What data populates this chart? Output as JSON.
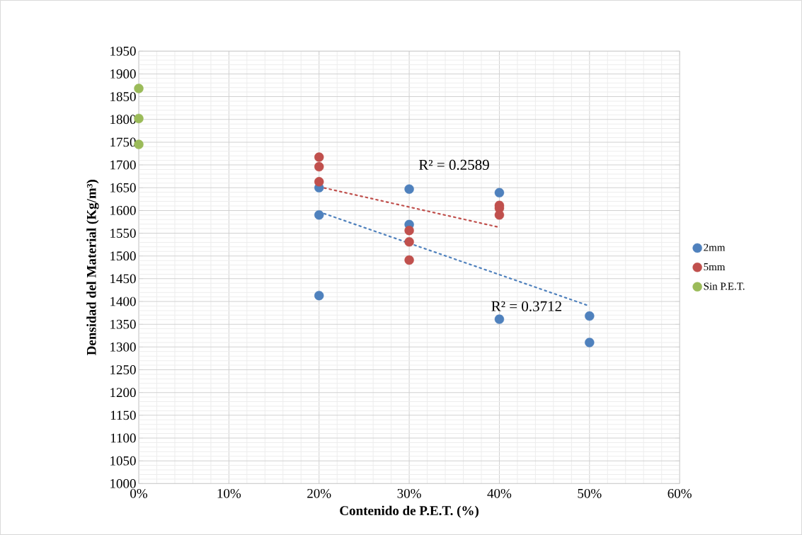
{
  "chart_data": {
    "type": "scatter",
    "xlabel": "Contenido de P.E.T. (%)",
    "ylabel": "Densidad del Material (Kg/m³)",
    "xlim": [
      0,
      60
    ],
    "ylim": [
      1000,
      1950
    ],
    "xticks": [
      {
        "value": 0,
        "label": "0%"
      },
      {
        "value": 10,
        "label": "10%"
      },
      {
        "value": 20,
        "label": "20%"
      },
      {
        "value": 30,
        "label": "30%"
      },
      {
        "value": 40,
        "label": "40%"
      },
      {
        "value": 50,
        "label": "50%"
      },
      {
        "value": 60,
        "label": "60%"
      }
    ],
    "yticks": [
      1000,
      1050,
      1100,
      1150,
      1200,
      1250,
      1300,
      1350,
      1400,
      1450,
      1500,
      1550,
      1600,
      1650,
      1700,
      1750,
      1800,
      1850,
      1900,
      1950
    ],
    "grid": true,
    "legend": "right",
    "series": [
      {
        "name": "2mm",
        "color": "#4f81bd",
        "marker": "circle",
        "x": [
          20,
          20,
          20,
          30,
          30,
          40,
          40,
          50,
          50
        ],
        "values": [
          1650,
          1590,
          1413,
          1647,
          1569,
          1639,
          1361,
          1368,
          1310
        ]
      },
      {
        "name": "5mm",
        "color": "#c0504d",
        "marker": "circle",
        "x": [
          20,
          20,
          20,
          30,
          30,
          30,
          40,
          40,
          40
        ],
        "values": [
          1717,
          1696,
          1663,
          1556,
          1531,
          1491,
          1611,
          1605,
          1590
        ]
      },
      {
        "name": "Sin P.E.T.",
        "color": "#9bbb59",
        "marker": "circle",
        "x": [
          0,
          0,
          0
        ],
        "values": [
          1868,
          1802,
          1745
        ]
      },
      {
        "type": "line",
        "color": "#4f81bd",
        "line_style": "dotted",
        "marker": "none",
        "x": [
          20,
          50
        ],
        "values": [
          1597,
          1390
        ]
      },
      {
        "type": "line",
        "color": "#c0504d",
        "line_style": "dotted",
        "marker": "none",
        "x": [
          20,
          40
        ],
        "values": [
          1652,
          1563
        ]
      }
    ],
    "annotations": [
      "R² = 0.2589",
      "R² = 0.3712"
    ]
  }
}
